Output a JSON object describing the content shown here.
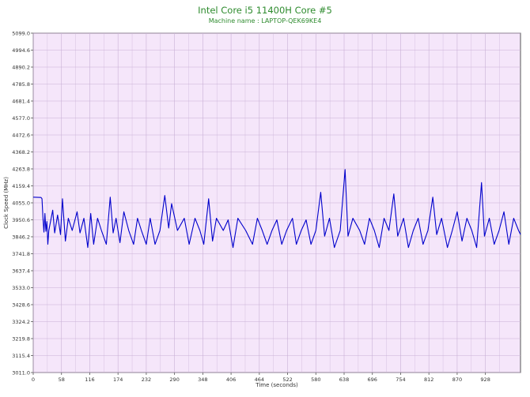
{
  "chart_data": {
    "type": "line",
    "title": "Intel Core i5 11400H Core #5",
    "subtitle": "Machine name : LAPTOP-QEK69KE4",
    "xlabel": "Time (seconds)",
    "ylabel": "Clock Speed (MHz)",
    "xlim": [
      0,
      1000
    ],
    "ylim": [
      3011.0,
      5099.0
    ],
    "x_ticks": [
      "0",
      "58",
      "116",
      "174",
      "232",
      "290",
      "348",
      "406",
      "464",
      "522",
      "580",
      "638",
      "696",
      "754",
      "812",
      "870",
      "928"
    ],
    "y_ticks": [
      "5099.0",
      "4994.6",
      "4890.2",
      "4785.8",
      "4681.4",
      "4577.0",
      "4472.6",
      "4368.2",
      "4263.8",
      "4159.4",
      "4055.0",
      "3950.6",
      "3846.2",
      "3741.8",
      "3637.4",
      "3533.0",
      "3428.6",
      "3324.2",
      "3219.8",
      "3115.4",
      "3011.0"
    ],
    "grid": true,
    "colors": {
      "title": "#2e8b2e",
      "subtitle": "#2e8b2e",
      "plot_bg": "#f5e6fa",
      "grid": "#c9b0d6",
      "line": "#0000cc",
      "axis_text": "#333333"
    },
    "series": [
      {
        "baseline_mhz": 3885,
        "points": [
          [
            0,
            4090
          ],
          [
            16,
            4088
          ],
          [
            18,
            4080
          ],
          [
            20,
            3960
          ],
          [
            22,
            3875
          ],
          [
            24,
            3990
          ],
          [
            26,
            3880
          ],
          [
            28,
            3940
          ],
          [
            30,
            3800
          ],
          [
            32,
            3885
          ],
          [
            40,
            4010
          ],
          [
            44,
            3870
          ],
          [
            50,
            3980
          ],
          [
            56,
            3860
          ],
          [
            60,
            4080
          ],
          [
            66,
            3820
          ],
          [
            72,
            3960
          ],
          [
            80,
            3885
          ],
          [
            90,
            4000
          ],
          [
            96,
            3870
          ],
          [
            104,
            3960
          ],
          [
            112,
            3780
          ],
          [
            118,
            3990
          ],
          [
            124,
            3800
          ],
          [
            132,
            3960
          ],
          [
            140,
            3885
          ],
          [
            150,
            3800
          ],
          [
            158,
            4090
          ],
          [
            164,
            3870
          ],
          [
            170,
            3960
          ],
          [
            178,
            3810
          ],
          [
            186,
            4000
          ],
          [
            196,
            3885
          ],
          [
            206,
            3800
          ],
          [
            214,
            3960
          ],
          [
            222,
            3885
          ],
          [
            232,
            3800
          ],
          [
            240,
            3960
          ],
          [
            250,
            3800
          ],
          [
            260,
            3885
          ],
          [
            270,
            4100
          ],
          [
            278,
            3900
          ],
          [
            284,
            4050
          ],
          [
            296,
            3885
          ],
          [
            310,
            3960
          ],
          [
            320,
            3800
          ],
          [
            332,
            3960
          ],
          [
            342,
            3885
          ],
          [
            350,
            3800
          ],
          [
            360,
            4080
          ],
          [
            368,
            3820
          ],
          [
            376,
            3960
          ],
          [
            390,
            3885
          ],
          [
            400,
            3950
          ],
          [
            410,
            3780
          ],
          [
            420,
            3960
          ],
          [
            436,
            3885
          ],
          [
            450,
            3800
          ],
          [
            460,
            3960
          ],
          [
            470,
            3885
          ],
          [
            480,
            3800
          ],
          [
            490,
            3885
          ],
          [
            500,
            3950
          ],
          [
            510,
            3800
          ],
          [
            520,
            3885
          ],
          [
            532,
            3960
          ],
          [
            540,
            3800
          ],
          [
            550,
            3885
          ],
          [
            560,
            3950
          ],
          [
            570,
            3800
          ],
          [
            580,
            3885
          ],
          [
            590,
            4120
          ],
          [
            598,
            3850
          ],
          [
            608,
            3960
          ],
          [
            618,
            3780
          ],
          [
            630,
            3885
          ],
          [
            640,
            4260
          ],
          [
            646,
            3850
          ],
          [
            656,
            3960
          ],
          [
            670,
            3885
          ],
          [
            680,
            3800
          ],
          [
            690,
            3960
          ],
          [
            700,
            3885
          ],
          [
            710,
            3780
          ],
          [
            720,
            3960
          ],
          [
            730,
            3885
          ],
          [
            740,
            4110
          ],
          [
            748,
            3850
          ],
          [
            760,
            3960
          ],
          [
            770,
            3780
          ],
          [
            780,
            3885
          ],
          [
            790,
            3960
          ],
          [
            800,
            3800
          ],
          [
            810,
            3885
          ],
          [
            820,
            4090
          ],
          [
            828,
            3860
          ],
          [
            838,
            3960
          ],
          [
            850,
            3780
          ],
          [
            860,
            3885
          ],
          [
            870,
            4000
          ],
          [
            880,
            3820
          ],
          [
            890,
            3960
          ],
          [
            900,
            3885
          ],
          [
            910,
            3780
          ],
          [
            920,
            4180
          ],
          [
            926,
            3850
          ],
          [
            936,
            3960
          ],
          [
            946,
            3800
          ],
          [
            956,
            3885
          ],
          [
            966,
            4000
          ],
          [
            976,
            3800
          ],
          [
            986,
            3960
          ],
          [
            996,
            3885
          ],
          [
            1000,
            3860
          ]
        ]
      }
    ]
  }
}
